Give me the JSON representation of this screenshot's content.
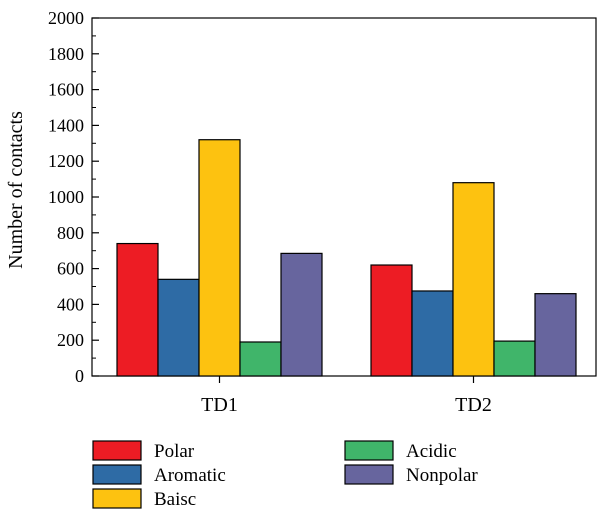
{
  "chart_data": {
    "type": "bar",
    "title": "",
    "xlabel": "",
    "ylabel": "Number of contacts",
    "ylim": [
      0,
      2000
    ],
    "yticks": [
      "0",
      "200",
      "400",
      "600",
      "800",
      "1000",
      "1200",
      "1400",
      "1600",
      "1800",
      "2000"
    ],
    "categories": [
      "TD1",
      "TD2"
    ],
    "series": [
      {
        "name": "Polar",
        "color": "#ed1c24",
        "values": [
          740,
          620
        ]
      },
      {
        "name": "Aromatic",
        "color": "#2e6ba5",
        "values": [
          540,
          475
        ]
      },
      {
        "name": "Baisc",
        "color": "#fdc210",
        "values": [
          1320,
          1080
        ]
      },
      {
        "name": "Acidic",
        "color": "#40b56a",
        "values": [
          190,
          195
        ]
      },
      {
        "name": "Nonpolar",
        "color": "#67659e",
        "values": [
          685,
          460
        ]
      }
    ],
    "legend_position": "bottom"
  }
}
